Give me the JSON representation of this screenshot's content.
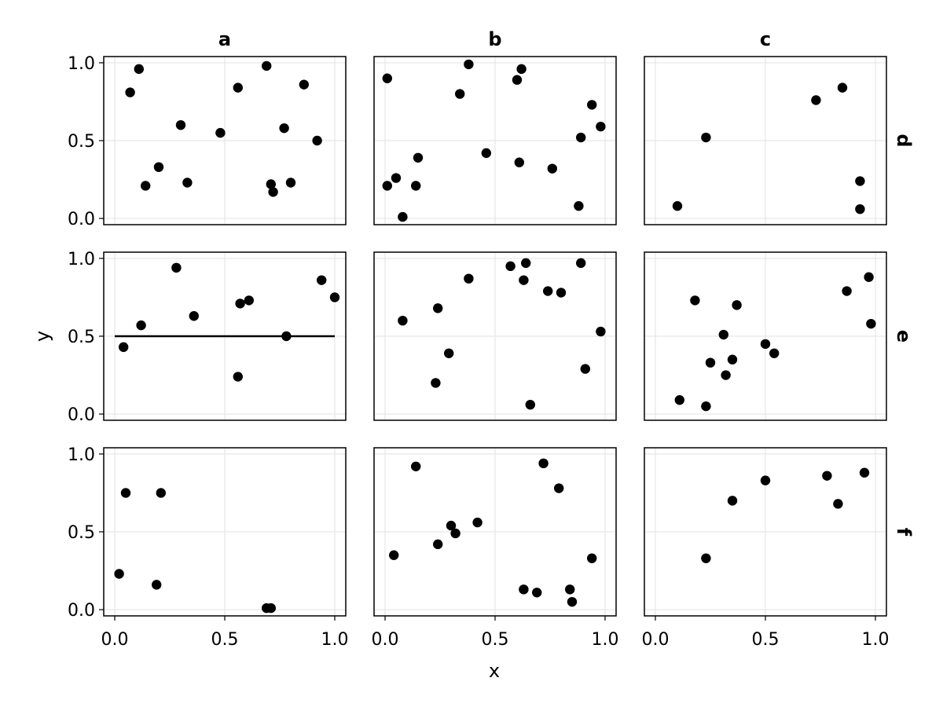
{
  "chart_data": {
    "type": "scatter",
    "col_titles": [
      "a",
      "b",
      "c"
    ],
    "row_titles": [
      "d",
      "e",
      "f"
    ],
    "xlabel": "x",
    "ylabel": "y",
    "xlim": [
      -0.05,
      1.05
    ],
    "ylim": [
      -0.04,
      1.04
    ],
    "xticks": [
      0.0,
      0.5,
      1.0
    ],
    "xtick_labels": [
      "0.0",
      "0.5",
      "1.0"
    ],
    "yticks": [
      0.0,
      0.5,
      1.0
    ],
    "ytick_labels": [
      "0.0",
      "0.5",
      "1.0"
    ],
    "grid": true,
    "marker_color": "#000000",
    "grid_color": "#e6e6e6",
    "panels": [
      {
        "col": 0,
        "row": 0,
        "x": [
          0.07,
          0.11,
          0.3,
          0.14,
          0.2,
          0.33,
          0.48,
          0.56,
          0.69,
          0.77,
          0.86,
          0.92,
          0.71,
          0.8,
          0.72
        ],
        "y": [
          0.81,
          0.96,
          0.6,
          0.21,
          0.33,
          0.23,
          0.55,
          0.84,
          0.98,
          0.58,
          0.86,
          0.5,
          0.22,
          0.23,
          0.17
        ]
      },
      {
        "col": 1,
        "row": 0,
        "x": [
          0.01,
          0.01,
          0.05,
          0.08,
          0.14,
          0.15,
          0.34,
          0.38,
          0.46,
          0.6,
          0.61,
          0.62,
          0.76,
          0.88,
          0.89,
          0.94,
          0.98
        ],
        "y": [
          0.9,
          0.21,
          0.26,
          0.01,
          0.21,
          0.39,
          0.8,
          0.99,
          0.42,
          0.89,
          0.36,
          0.96,
          0.32,
          0.08,
          0.52,
          0.73,
          0.59
        ]
      },
      {
        "col": 2,
        "row": 0,
        "x": [
          0.1,
          0.23,
          0.73,
          0.85,
          0.93,
          0.93
        ],
        "y": [
          0.08,
          0.52,
          0.76,
          0.84,
          0.24,
          0.06
        ]
      },
      {
        "col": 0,
        "row": 1,
        "x": [
          0.04,
          0.12,
          0.28,
          0.36,
          0.56,
          0.57,
          0.61,
          0.78,
          0.94,
          1.0
        ],
        "y": [
          0.43,
          0.57,
          0.94,
          0.63,
          0.24,
          0.71,
          0.73,
          0.5,
          0.86,
          0.75
        ],
        "hline": {
          "y": 0.5,
          "x": [
            0.0,
            1.0
          ]
        }
      },
      {
        "col": 1,
        "row": 1,
        "x": [
          0.08,
          0.23,
          0.24,
          0.29,
          0.38,
          0.57,
          0.63,
          0.64,
          0.66,
          0.74,
          0.8,
          0.89,
          0.91,
          0.98
        ],
        "y": [
          0.6,
          0.2,
          0.68,
          0.39,
          0.87,
          0.95,
          0.86,
          0.97,
          0.06,
          0.79,
          0.78,
          0.97,
          0.29,
          0.53
        ]
      },
      {
        "col": 2,
        "row": 1,
        "x": [
          0.11,
          0.18,
          0.23,
          0.25,
          0.31,
          0.32,
          0.35,
          0.37,
          0.5,
          0.54,
          0.87,
          0.97,
          0.98
        ],
        "y": [
          0.09,
          0.73,
          0.05,
          0.33,
          0.51,
          0.25,
          0.35,
          0.7,
          0.45,
          0.39,
          0.79,
          0.88,
          0.58
        ]
      },
      {
        "col": 0,
        "row": 2,
        "x": [
          0.02,
          0.05,
          0.19,
          0.21,
          0.69,
          0.71
        ],
        "y": [
          0.23,
          0.75,
          0.16,
          0.75,
          0.01,
          0.01
        ]
      },
      {
        "col": 1,
        "row": 2,
        "x": [
          0.04,
          0.14,
          0.24,
          0.3,
          0.32,
          0.42,
          0.63,
          0.69,
          0.72,
          0.79,
          0.84,
          0.85,
          0.94
        ],
        "y": [
          0.35,
          0.92,
          0.42,
          0.54,
          0.49,
          0.56,
          0.13,
          0.11,
          0.94,
          0.78,
          0.13,
          0.05,
          0.33
        ]
      },
      {
        "col": 2,
        "row": 2,
        "x": [
          0.23,
          0.35,
          0.5,
          0.78,
          0.83,
          0.95
        ],
        "y": [
          0.33,
          0.7,
          0.83,
          0.86,
          0.68,
          0.88
        ]
      }
    ]
  }
}
